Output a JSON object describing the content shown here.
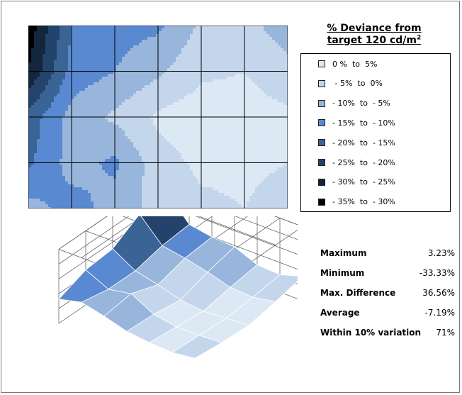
{
  "chart_data": [
    {
      "type": "heatmap",
      "title": "% Deviance from target 120 cd/m²",
      "grid_rows": 4,
      "grid_cols": 6,
      "corner_values": [
        [
          -33.3,
          -15,
          -12,
          -11,
          -4,
          -3,
          -8
        ],
        [
          -30,
          -13,
          -10,
          -6,
          -1,
          0,
          -3
        ],
        [
          -18,
          -8,
          -4,
          1,
          3,
          2,
          1
        ],
        [
          -16,
          -8,
          -11,
          -2,
          1,
          1,
          0
        ],
        [
          -8,
          -12,
          -8,
          -3,
          -1,
          0,
          -2
        ]
      ],
      "legend": [
        {
          "label": "0 %  to  5%",
          "color": "#dde8f5"
        },
        {
          "label": " - 5%  to  0%",
          "color": "#c4d6ec"
        },
        {
          "label": "- 10%  to  - 5%",
          "color": "#98b6dc"
        },
        {
          "label": "- 15%  to  - 10%",
          "color": "#5889d1"
        },
        {
          "label": "- 20%  to  - 15%",
          "color": "#3a6396"
        },
        {
          "label": "- 25%  to  - 20%",
          "color": "#24436a"
        },
        {
          "label": "- 30%  to  - 25%",
          "color": "#13263e"
        },
        {
          "label": "- 35%  to  - 30%",
          "color": "#000000"
        }
      ]
    },
    {
      "type": "surface",
      "description_free": true
    }
  ],
  "title": {
    "line1": "% Deviance from",
    "line2_prefix": "target 120 cd/m",
    "line2_sup": "2"
  },
  "stats": [
    {
      "label": "Maximum",
      "value": "3.23%"
    },
    {
      "label": "Minimum",
      "value": "-33.33%"
    },
    {
      "label": "Max. Difference",
      "value": "36.56%"
    },
    {
      "label": "Average",
      "value": "-7.19%"
    },
    {
      "label": "Within 10% variation",
      "value": "71%"
    }
  ]
}
